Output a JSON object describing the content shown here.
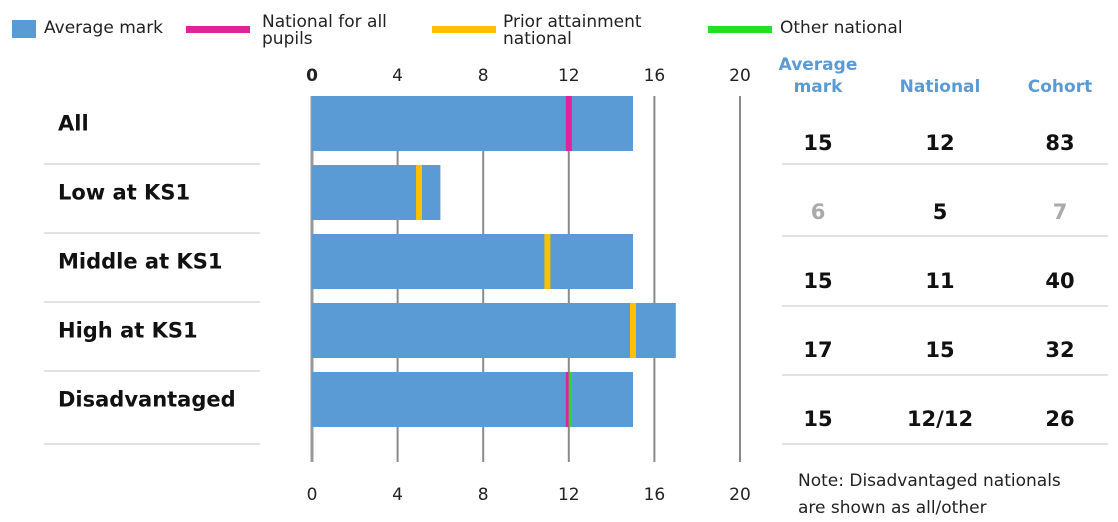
{
  "legend": [
    {
      "label": "Average mark",
      "color": "#5b9bd5",
      "shape": "square"
    },
    {
      "label": "National for all\npupils",
      "color": "#e0239b",
      "shape": "line"
    },
    {
      "label": "Prior attainment\nnational",
      "color": "#ffc000",
      "shape": "line"
    },
    {
      "label": "Other national",
      "color": "#22e022",
      "shape": "line"
    }
  ],
  "note": {
    "line1": "Note: Disadvantaged nationals",
    "line2": "are shown as all/other"
  },
  "chart_data": {
    "type": "bar",
    "orientation": "horizontal",
    "categories": [
      "All",
      "Low at KS1",
      "Middle at KS1",
      "High at KS1",
      "Disadvantaged"
    ],
    "series": [
      {
        "name": "Average mark",
        "values": [
          15,
          6,
          15,
          17,
          15
        ],
        "color": "#5b9bd5"
      }
    ],
    "markers": [
      {
        "category": "All",
        "name": "National for all pupils",
        "value": 12,
        "color": "#e0239b"
      },
      {
        "category": "Low at KS1",
        "name": "Prior attainment national",
        "value": 5,
        "color": "#ffc000"
      },
      {
        "category": "Middle at KS1",
        "name": "Prior attainment national",
        "value": 11,
        "color": "#ffc000"
      },
      {
        "category": "High at KS1",
        "name": "Prior attainment national",
        "value": 15,
        "color": "#ffc000"
      },
      {
        "category": "Disadvantaged",
        "name": "National for all pupils",
        "value": 12,
        "color": "#e0239b"
      },
      {
        "category": "Disadvantaged",
        "name": "Other national",
        "value": 12,
        "color": "#22e022"
      }
    ],
    "xlim": [
      0,
      20
    ],
    "xticks": [
      0,
      4,
      8,
      12,
      16,
      20
    ],
    "grid": true,
    "table": {
      "headers": [
        [
          "Average",
          "mark"
        ],
        [
          "National"
        ],
        [
          "Cohort"
        ]
      ],
      "rows": [
        {
          "avg": "15",
          "national": "12",
          "cohort": "83",
          "faded": [
            false,
            false,
            false
          ]
        },
        {
          "avg": "6",
          "national": "5",
          "cohort": "7",
          "faded": [
            true,
            false,
            true
          ]
        },
        {
          "avg": "15",
          "national": "11",
          "cohort": "40",
          "faded": [
            false,
            false,
            false
          ]
        },
        {
          "avg": "17",
          "national": "15",
          "cohort": "32",
          "faded": [
            false,
            false,
            false
          ]
        },
        {
          "avg": "15",
          "national": "12/12",
          "cohort": "26",
          "faded": [
            false,
            false,
            false
          ]
        }
      ]
    }
  }
}
